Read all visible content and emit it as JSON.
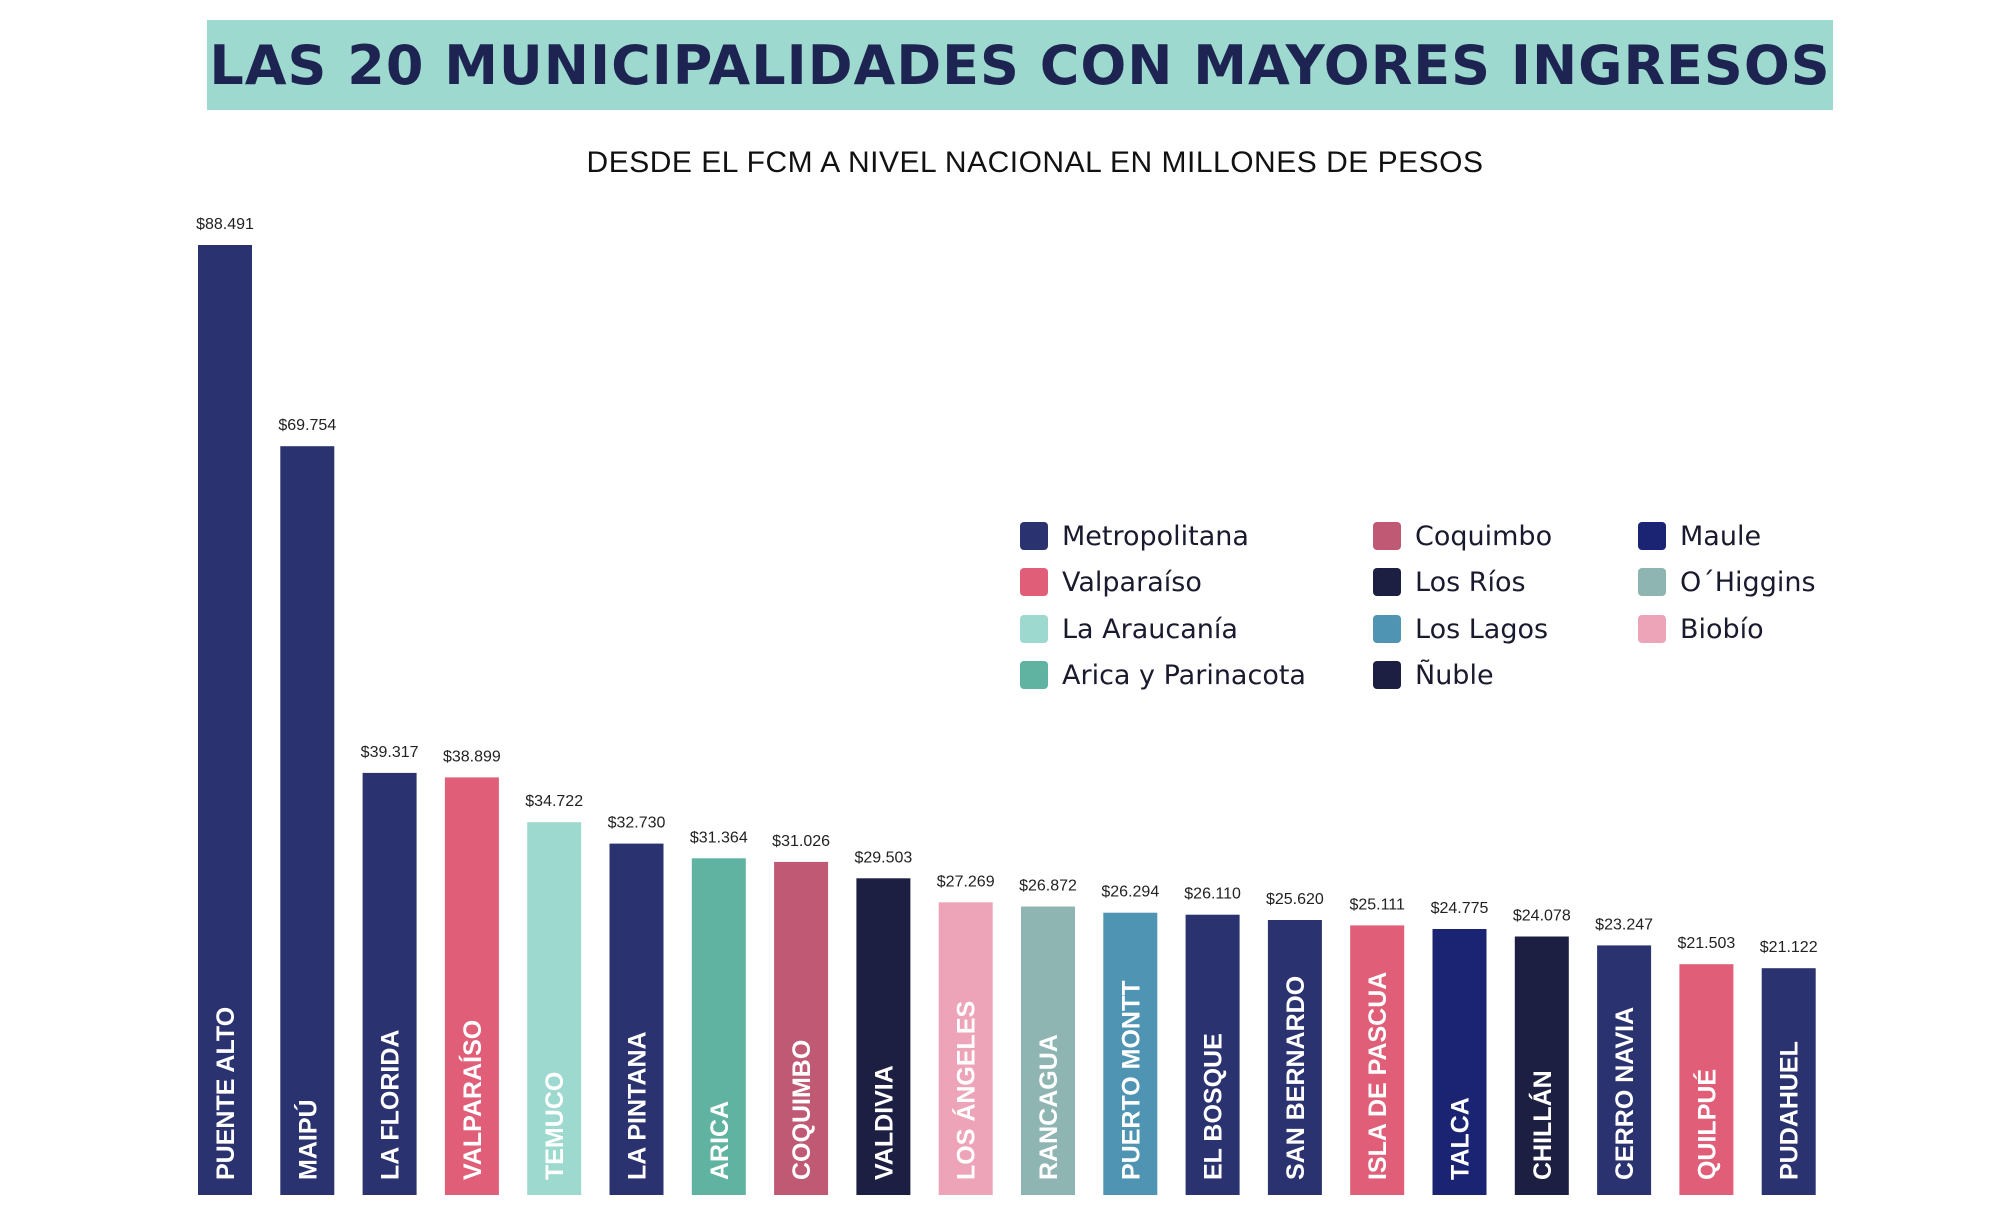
{
  "title": "LAS 20 MUNICIPALIDADES CON MAYORES INGRESOS",
  "subtitle": "DESDE EL FCM A NIVEL NACIONAL EN MILLONES DE PESOS",
  "colors": {
    "Metropolitana": "#2b3270",
    "Valparaíso": "#e05e78",
    "La Araucanía": "#9dd9cf",
    "Arica y Parinacota": "#5fb3a0",
    "Coquimbo": "#c05a74",
    "Los Ríos": "#1c1f42",
    "Los Lagos": "#4f95b3",
    "Ñuble": "#1c1f42",
    "Maule": "#1b2473",
    "O´Higgins": "#8fb5b2",
    "Biobío": "#eea4b8"
  },
  "legend": [
    {
      "label": "Metropolitana",
      "region": "Metropolitana"
    },
    {
      "label": "Valparaíso",
      "region": "Valparaíso"
    },
    {
      "label": "La Araucanía",
      "region": "La Araucanía"
    },
    {
      "label": "Arica y Parinacota",
      "region": "Arica y Parinacota"
    },
    {
      "label": "Coquimbo",
      "region": "Coquimbo"
    },
    {
      "label": "Los Ríos",
      "region": "Los Ríos"
    },
    {
      "label": "Los Lagos",
      "region": "Los Lagos"
    },
    {
      "label": "Ñuble",
      "region": "Ñuble"
    },
    {
      "label": "Maule",
      "region": "Maule"
    },
    {
      "label": "O´Higgins",
      "region": "O´Higgins"
    },
    {
      "label": "Biobío",
      "region": "Biobío"
    }
  ],
  "chart_data": {
    "type": "bar",
    "title": "LAS 20 MUNICIPALIDADES CON MAYORES INGRESOS",
    "subtitle": "DESDE EL FCM A NIVEL NACIONAL EN MILLONES DE PESOS",
    "categories": [
      "PUENTE ALTO",
      "MAIPÚ",
      "LA FLORIDA",
      "VALPARAÍSO",
      "TEMUCO",
      "LA PINTANA",
      "ARICA",
      "COQUIMBO",
      "VALDIVIA",
      "LOS ÁNGELES",
      "RANCAGUA",
      "PUERTO MONTT",
      "EL BOSQUE",
      "SAN BERNARDO",
      "ISLA DE PASCUA",
      "TALCA",
      "CHILLÁN",
      "CERRO NAVIA",
      "QUILPUÉ",
      "PUDAHUEL"
    ],
    "values": [
      88491,
      69754,
      39317,
      38899,
      34722,
      32730,
      31364,
      31026,
      29503,
      27269,
      26872,
      26294,
      26110,
      25620,
      25111,
      24775,
      24078,
      23247,
      21503,
      21122
    ],
    "value_labels": [
      "$88.491",
      "$69.754",
      "$39.317",
      "$38.899",
      "$34.722",
      "$32.730",
      "$31.364",
      "$31.026",
      "$29.503",
      "$27.269",
      "$26.872",
      "$26.294",
      "$26.110",
      "$25.620",
      "$25.111",
      "$24.775",
      "$24.078",
      "$23.247",
      "$21.503",
      "$21.122"
    ],
    "regions": [
      "Metropolitana",
      "Metropolitana",
      "Metropolitana",
      "Valparaíso",
      "La Araucanía",
      "Metropolitana",
      "Arica y Parinacota",
      "Coquimbo",
      "Los Ríos",
      "Biobío",
      "O´Higgins",
      "Los Lagos",
      "Metropolitana",
      "Metropolitana",
      "Valparaíso",
      "Maule",
      "Ñuble",
      "Metropolitana",
      "Valparaíso",
      "Metropolitana"
    ],
    "legend_position": "upper-right"
  }
}
